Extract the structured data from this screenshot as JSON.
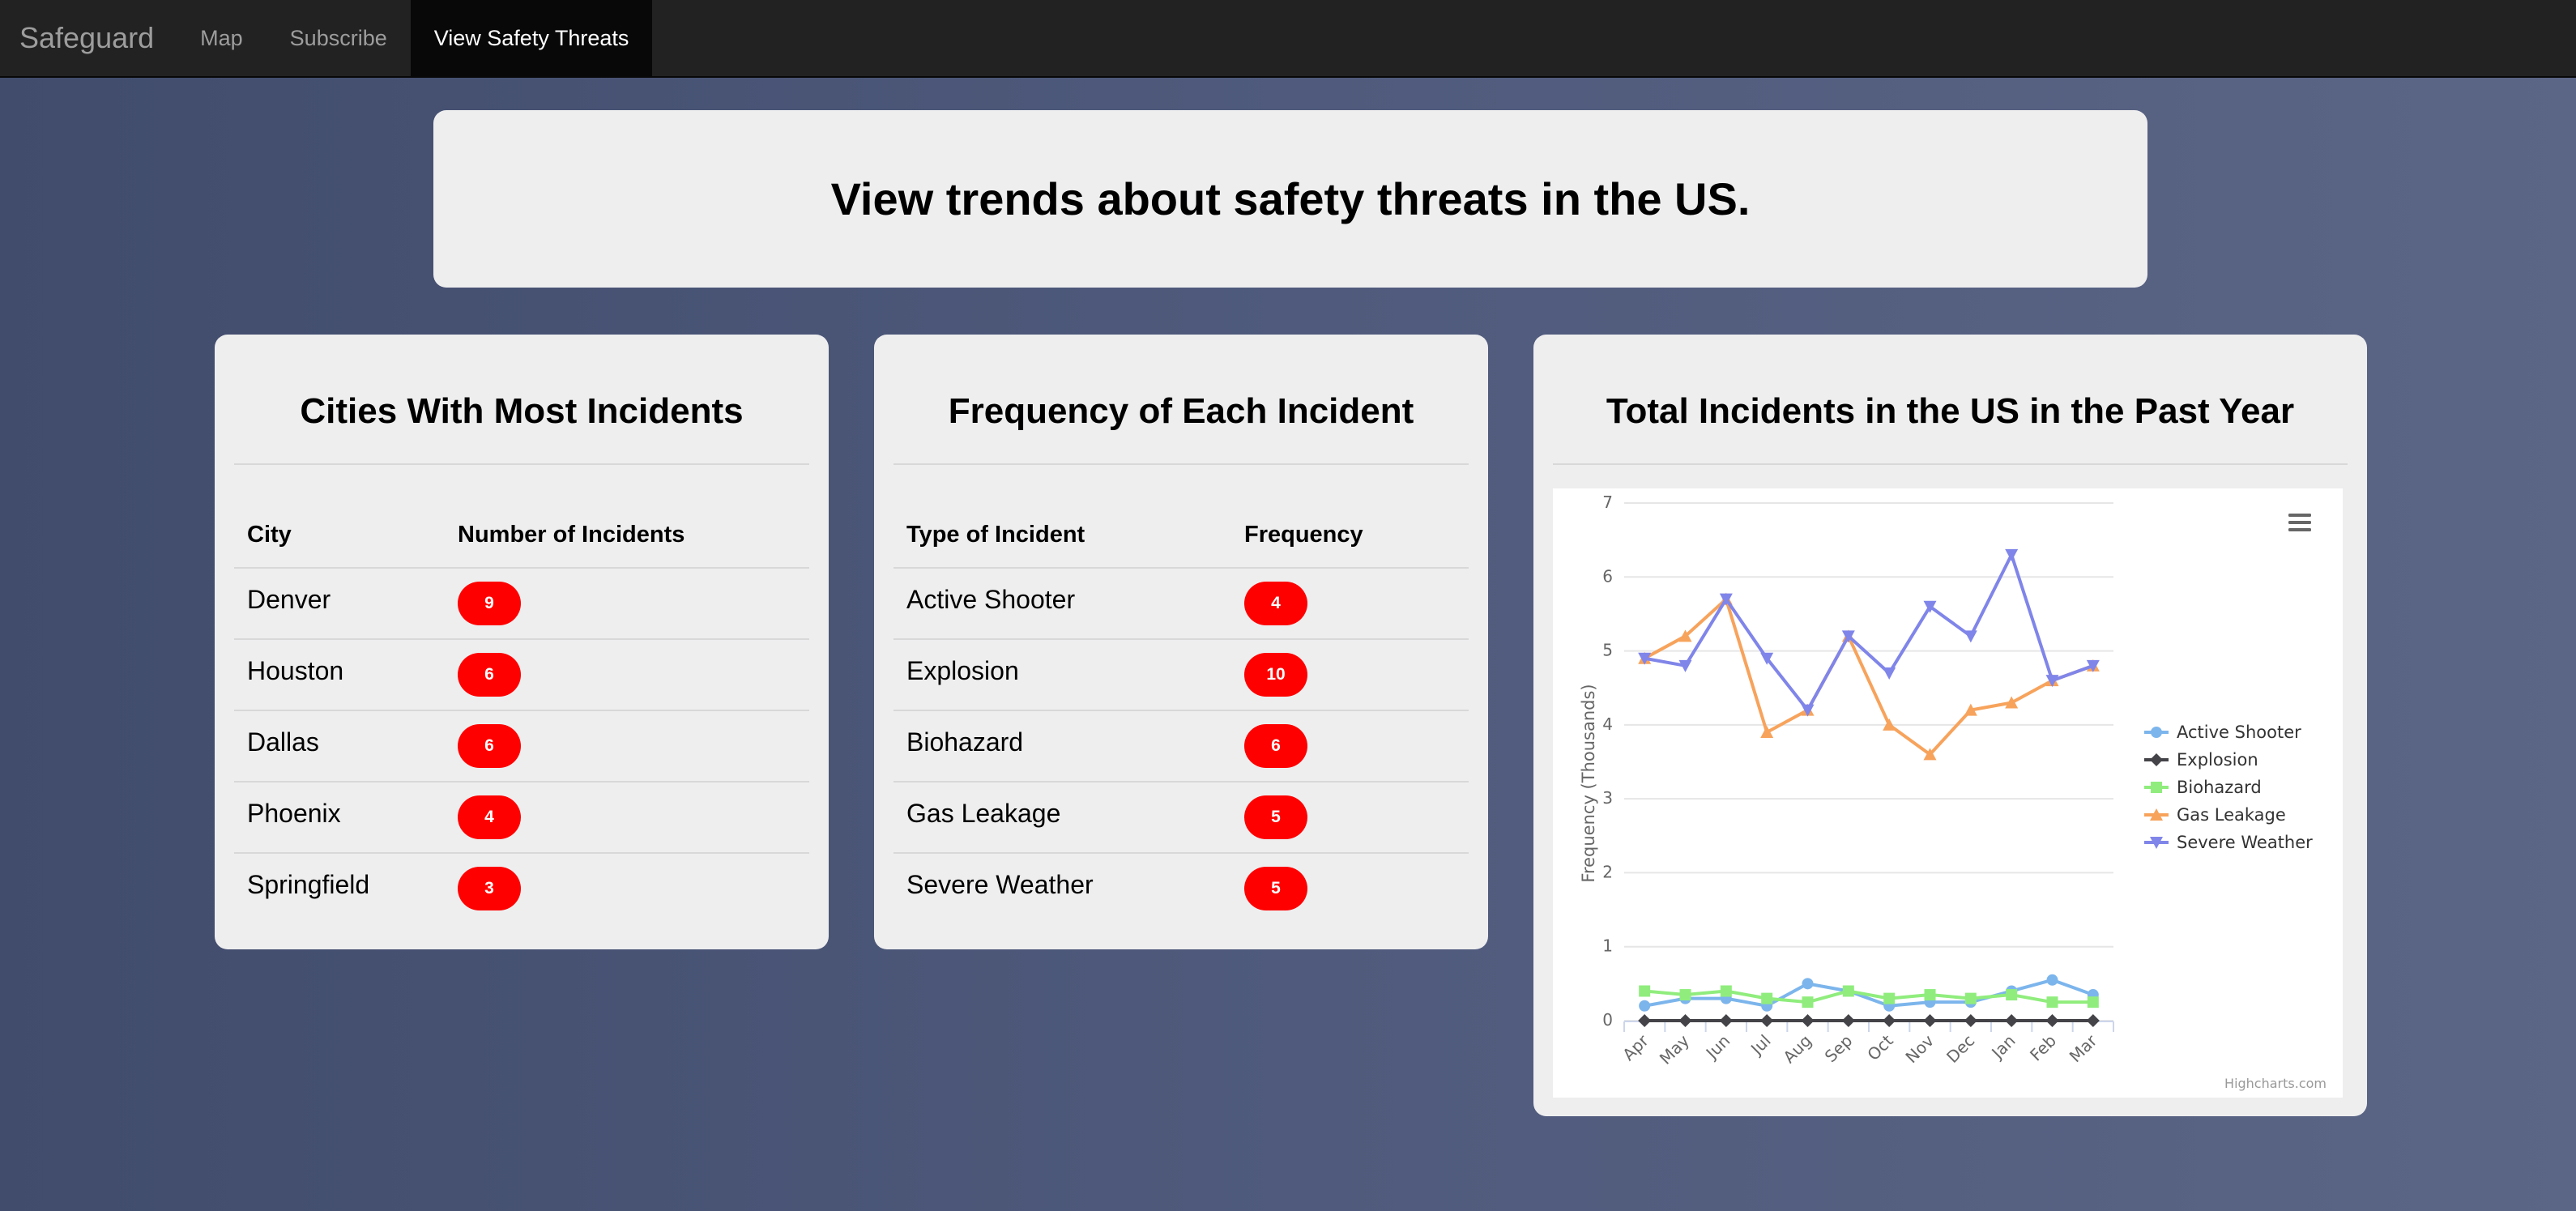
{
  "nav": {
    "brand": "Safeguard",
    "links": [
      "Map",
      "Subscribe",
      "View Safety Threats"
    ],
    "active_index": 2
  },
  "jumbotron": {
    "title": "View trends about safety threats in the US."
  },
  "cities_card": {
    "title": "Cities With Most Incidents",
    "headers": [
      "City",
      "Number of Incidents"
    ],
    "rows": [
      {
        "name": "Denver",
        "count": "9"
      },
      {
        "name": "Houston",
        "count": "6"
      },
      {
        "name": "Dallas",
        "count": "6"
      },
      {
        "name": "Phoenix",
        "count": "4"
      },
      {
        "name": "Springfield",
        "count": "3"
      }
    ]
  },
  "frequency_card": {
    "title": "Frequency of Each Incident",
    "headers": [
      "Type of Incident",
      "Frequency"
    ],
    "rows": [
      {
        "name": "Active Shooter",
        "count": "4"
      },
      {
        "name": "Explosion",
        "count": "10"
      },
      {
        "name": "Biohazard",
        "count": "6"
      },
      {
        "name": "Gas Leakage",
        "count": "5"
      },
      {
        "name": "Severe Weather",
        "count": "5"
      }
    ]
  },
  "chart_card": {
    "title": "Total Incidents in the US in the Past Year"
  },
  "chart_data": {
    "type": "line",
    "title": "",
    "xlabel": "",
    "ylabel": "Frequency (Thousands)",
    "ylim": [
      0,
      7
    ],
    "yticks": [
      0,
      1,
      2,
      3,
      4,
      5,
      6,
      7
    ],
    "grid": true,
    "legend_position": "right",
    "credits": "Highcharts.com",
    "menu_icon": "hamburger-menu-icon",
    "categories": [
      "Apr",
      "May",
      "Jun",
      "Jul",
      "Aug",
      "Sep",
      "Oct",
      "Nov",
      "Dec",
      "Jan",
      "Feb",
      "Mar"
    ],
    "series": [
      {
        "name": "Active Shooter",
        "color": "#7cb5ec",
        "marker": "circle",
        "values": [
          0.2,
          0.3,
          0.3,
          0.2,
          0.5,
          0.4,
          0.2,
          0.25,
          0.25,
          0.4,
          0.55,
          0.35
        ]
      },
      {
        "name": "Explosion",
        "color": "#434348",
        "marker": "diamond",
        "values": [
          0.0,
          0.0,
          0.0,
          0.0,
          0.0,
          0.0,
          0.0,
          0.0,
          0.0,
          0.0,
          0.0,
          0.0
        ]
      },
      {
        "name": "Biohazard",
        "color": "#90ed7d",
        "marker": "square",
        "values": [
          0.4,
          0.35,
          0.4,
          0.3,
          0.25,
          0.4,
          0.3,
          0.35,
          0.3,
          0.35,
          0.25,
          0.25
        ]
      },
      {
        "name": "Gas Leakage",
        "color": "#f7a35c",
        "marker": "triangle",
        "values": [
          4.9,
          5.2,
          5.7,
          3.9,
          4.2,
          5.2,
          4.0,
          3.6,
          4.2,
          4.3,
          4.6,
          4.8
        ]
      },
      {
        "name": "Severe Weather",
        "color": "#8085e9",
        "marker": "triangle-down",
        "values": [
          4.9,
          4.8,
          5.7,
          4.9,
          4.2,
          5.2,
          4.7,
          5.6,
          5.2,
          6.3,
          4.6,
          4.8
        ]
      }
    ]
  }
}
